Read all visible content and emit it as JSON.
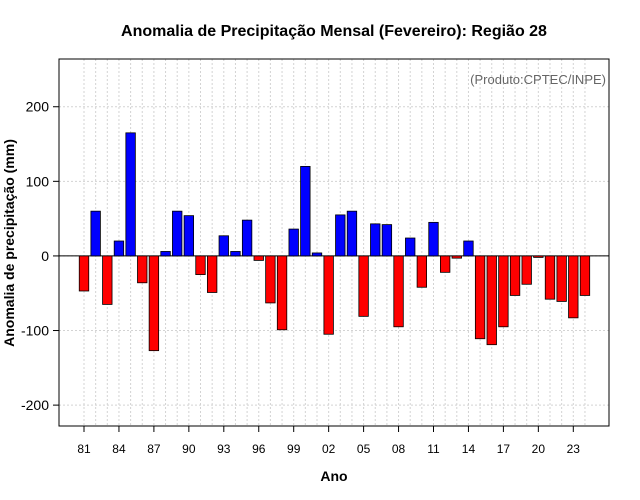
{
  "chart_data": {
    "type": "bar",
    "title": "Anomalia de Precipitação Mensal (Fevereiro): Região 28",
    "annotation": "(Produto:CPTEC/INPE)",
    "xlabel": "Ano",
    "ylabel": "Anomalia de precipitação (mm)",
    "ylim": [
      -228,
      264
    ],
    "yticks": [
      -200,
      -100,
      0,
      100,
      200
    ],
    "xtick_labels": [
      "81",
      "84",
      "87",
      "90",
      "93",
      "96",
      "99",
      "02",
      "05",
      "08",
      "11",
      "14",
      "17",
      "20",
      "23"
    ],
    "xtick_every": 3,
    "grid": true,
    "positive_color": "#0000ff",
    "negative_color": "#ff0000",
    "categories": [
      "1981",
      "1982",
      "1983",
      "1984",
      "1985",
      "1986",
      "1987",
      "1988",
      "1989",
      "1990",
      "1991",
      "1992",
      "1993",
      "1994",
      "1995",
      "1996",
      "1997",
      "1998",
      "1999",
      "2000",
      "2001",
      "2002",
      "2003",
      "2004",
      "2005",
      "2006",
      "2007",
      "2008",
      "2009",
      "2010",
      "2011",
      "2012",
      "2013",
      "2014",
      "2015",
      "2016",
      "2017",
      "2018",
      "2019",
      "2020",
      "2021",
      "2022",
      "2023",
      "2024"
    ],
    "values": [
      -47,
      60,
      -65,
      20,
      165,
      -36,
      -127,
      6,
      60,
      54,
      -25,
      -49,
      27,
      6,
      48,
      -6,
      -63,
      -99,
      36,
      120,
      4,
      -105,
      55,
      60,
      -81,
      43,
      42,
      -95,
      24,
      -42,
      45,
      -22,
      -3,
      20,
      -111,
      -119,
      -95,
      -53,
      -38,
      -2,
      -58,
      -61,
      -83,
      -53
    ]
  }
}
